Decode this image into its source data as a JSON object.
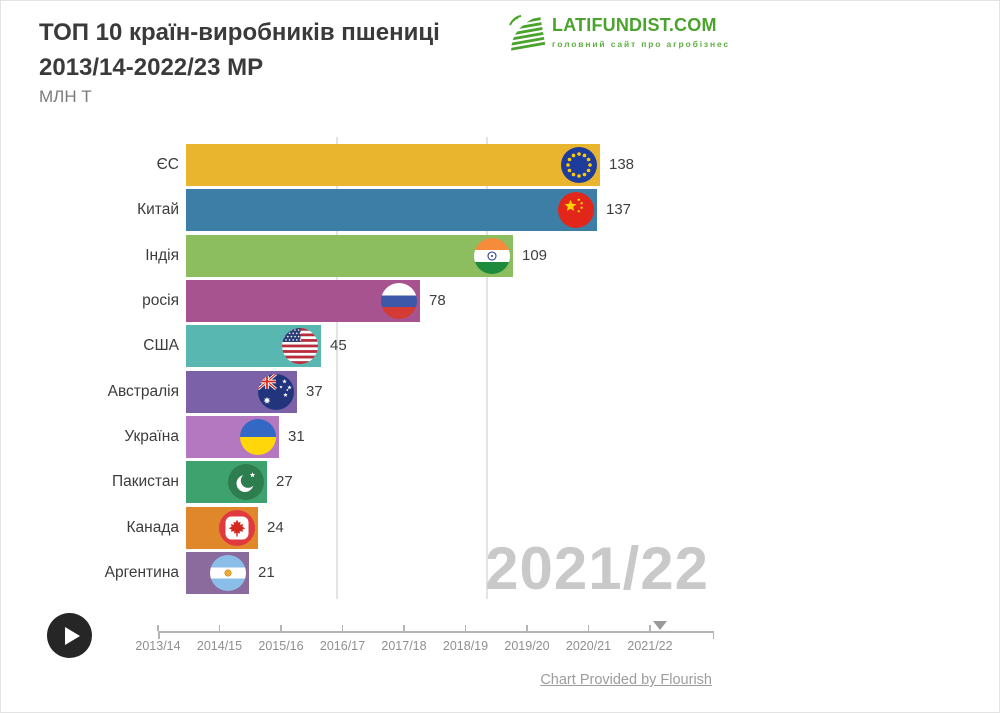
{
  "header": {
    "title_line1": "ТОП 10 країн-виробників пшениці",
    "title_line2": "2013/14-2022/23 МР",
    "subtitle": "МЛН Т"
  },
  "logo": {
    "text": "LATIFUNDIST.COM",
    "tagline": "головний сайт про агробізнес",
    "brand_color": "#4aa32d"
  },
  "chart_data": {
    "type": "bar",
    "orientation": "horizontal",
    "title": "ТОП 10 країн-виробників пшениці 2013/14-2022/23 МР",
    "ylabel": "",
    "xlabel": "МЛН Т",
    "period_shown": "2021/22",
    "xlim": [
      0,
      140
    ],
    "gridline_values": [
      50,
      100
    ],
    "categories": [
      "ЄС",
      "Китай",
      "Індія",
      "росія",
      "США",
      "Австралія",
      "Україна",
      "Пакистан",
      "Канада",
      "Аргентина"
    ],
    "values": [
      138,
      137,
      109,
      78,
      45,
      37,
      31,
      27,
      24,
      21
    ],
    "bar_colors": [
      "#e9b42e",
      "#3d7ea6",
      "#8cbd5f",
      "#a65390",
      "#58b8b1",
      "#7b61a8",
      "#b378bf",
      "#3da26e",
      "#e0872b",
      "#8b6b9d"
    ],
    "flags": [
      "eu",
      "china",
      "india",
      "russia",
      "usa",
      "australia",
      "ukraine",
      "pakistan",
      "canada",
      "argentina"
    ]
  },
  "watermark": {
    "text": "2021/22",
    "color": "#c9c9c9"
  },
  "timeline": {
    "ticks": [
      "2013/14",
      "2014/15",
      "2015/16",
      "2016/17",
      "2017/18",
      "2018/19",
      "2019/20",
      "2020/21",
      "2021/22"
    ],
    "current": "2021/22"
  },
  "controls": {
    "play": "play"
  },
  "footer": {
    "credit": "Chart Provided by Flourish"
  }
}
